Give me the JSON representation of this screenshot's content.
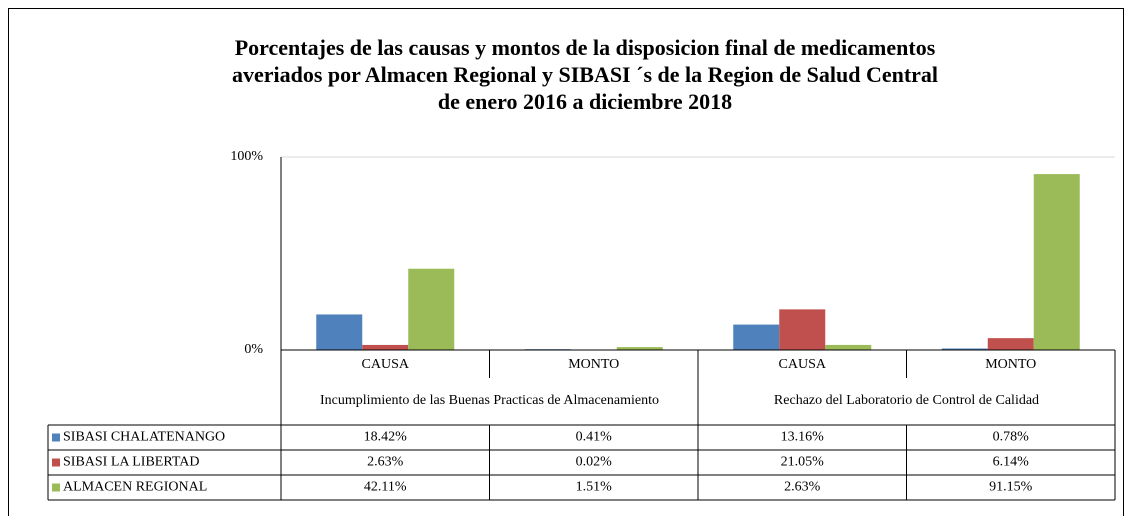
{
  "chart_data": {
    "type": "bar",
    "title": [
      "Porcentajes de las causas y montos de  la disposicion final de medicamentos",
      "averiados por  Almacen  Regional  y SIBASI ´s de la Region de Salud Central",
      "de enero 2016 a diciembre 2018"
    ],
    "categories": [
      "CAUSA",
      "MONTO",
      "CAUSA",
      "MONTO"
    ],
    "category_groups": [
      "Incumplimiento de las Buenas Practicas de Almacenamiento",
      "Rechazo del Laboratorio de Control de Calidad"
    ],
    "series": [
      {
        "name": "SIBASI CHALATENANGO",
        "color": "#4f81bd",
        "values": [
          18.42,
          0.41,
          13.16,
          0.78
        ],
        "value_labels": [
          "18.42%",
          "0.41%",
          "13.16%",
          "0.78%"
        ]
      },
      {
        "name": "SIBASI LA LIBERTAD",
        "color": "#c0504d",
        "values": [
          2.63,
          0.02,
          21.05,
          6.14
        ],
        "value_labels": [
          "2.63%",
          "0.02%",
          "21.05%",
          "6.14%"
        ]
      },
      {
        "name": "ALMACEN REGIONAL",
        "color": "#9bbb59",
        "values": [
          42.11,
          1.51,
          2.63,
          91.15
        ],
        "value_labels": [
          "42.11%",
          "1.51%",
          "2.63%",
          "91.15%"
        ]
      }
    ],
    "ylim": [
      0,
      100
    ],
    "yticks": [
      {
        "value": 0,
        "label": "0%"
      },
      {
        "value": 100,
        "label": "100%"
      }
    ],
    "grid": true
  }
}
